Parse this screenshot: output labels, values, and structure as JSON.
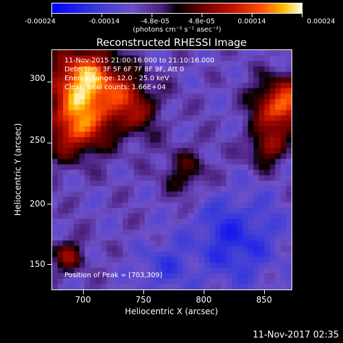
{
  "colorbar": {
    "tick_labels": [
      "-0.00024",
      "-0.00014",
      "-4.8e-05",
      "4.8e-05",
      "0.00014",
      "0.00024"
    ],
    "units": "(photons cm⁻² s⁻¹ asec⁻²)",
    "colors": [
      "#0000ff",
      "#000000",
      "#ff5000",
      "#ffffe0"
    ]
  },
  "chart_data": {
    "type": "heatmap",
    "title": "Reconstructed RHESSI Image",
    "xlabel": "Heliocentric X (arcsec)",
    "ylabel": "Heliocentric Y (arcsec)",
    "x_ticks": [
      "700",
      "750",
      "800",
      "850"
    ],
    "y_ticks": [
      "150",
      "200",
      "250",
      "300"
    ],
    "xlim": [
      675,
      870
    ],
    "ylim": [
      125,
      322
    ],
    "value_range": [
      -0.00024,
      0.00024
    ],
    "peak": [
      703,
      309
    ],
    "annotations": [
      "11-Nov-2015 21:00:16.000 to 21:10:16.000",
      "Detectors: 3F 5F 6F 7F 8F 9F, Att 0",
      "Energy Range: 12.0 - 25.0 keV",
      "Clean    Total counts: 1.66E+04",
      "Position of Peak = [703,309]"
    ]
  },
  "footer": {
    "date": "11-Nov-2017 02:35"
  }
}
